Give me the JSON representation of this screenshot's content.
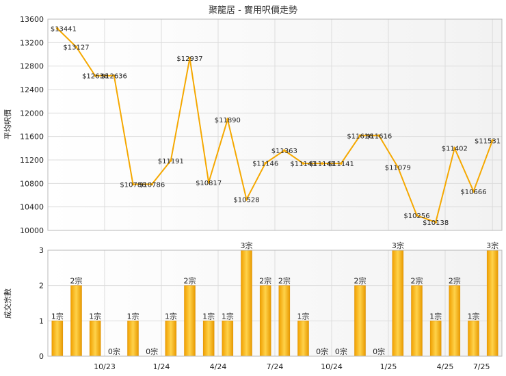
{
  "title": "聚龍居 - 實用呎價走勢",
  "chart_data": [
    {
      "type": "line",
      "ylabel": "平均呎價",
      "ylim": [
        10000,
        13600
      ],
      "yticks": [
        10000,
        10400,
        10800,
        11200,
        11600,
        12000,
        12400,
        12800,
        13200,
        13600
      ],
      "series": [
        {
          "color": "#f5a800",
          "values": [
            13441,
            13127,
            12636,
            12636,
            10786,
            10786,
            11191,
            12937,
            10817,
            11890,
            10528,
            11146,
            11363,
            11141,
            11141,
            11141,
            11616,
            11616,
            11079,
            10256,
            10138,
            11402,
            10666,
            11531
          ],
          "labels": [
            "$13441",
            "$13127",
            "$12636",
            "$12636",
            "$10786",
            "$10786",
            "$11191",
            "$12937",
            "$10817",
            "$11890",
            "$10528",
            "$11146",
            "$11363",
            "$11141",
            "$11141",
            "$11141",
            "$11616",
            "$11616",
            "$11079",
            "$10256",
            "$10138",
            "$11402",
            "$10666",
            "$11531"
          ]
        }
      ],
      "grid": true
    },
    {
      "type": "bar",
      "ylabel": "成交宗數",
      "ylim": [
        0,
        3
      ],
      "yticks": [
        0,
        1,
        2,
        3
      ],
      "x_tick_labels": [
        "10/23",
        "1/24",
        "4/24",
        "7/24",
        "10/24",
        "1/25",
        "4/25",
        "7/25"
      ],
      "series": [
        {
          "color": "#f5a800",
          "values": [
            1,
            2,
            1,
            0,
            1,
            0,
            1,
            2,
            1,
            1,
            3,
            2,
            2,
            1,
            0,
            0,
            2,
            0,
            3,
            2,
            1,
            2,
            1,
            3
          ],
          "labels": [
            "1宗",
            "2宗",
            "1宗",
            "0宗",
            "1宗",
            "0宗",
            "1宗",
            "2宗",
            "1宗",
            "1宗",
            "3宗",
            "2宗",
            "2宗",
            "1宗",
            "0宗",
            "0宗",
            "2宗",
            "0宗",
            "3宗",
            "2宗",
            "1宗",
            "2宗",
            "1宗",
            "3宗"
          ]
        }
      ],
      "grid": true
    }
  ]
}
